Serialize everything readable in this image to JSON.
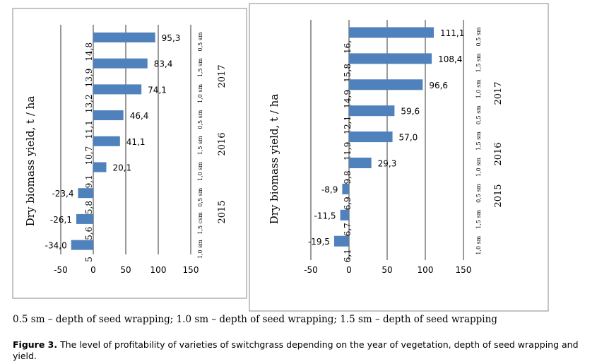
{
  "legend_text": "0.5 sm – depth of seed wrapping; 1.0 sm – depth of seed wrapping; 1.5 sm – depth of seed wrapping",
  "caption": {
    "label": "Figure 3.",
    "text": " The level of profitability of varieties of switchgrass depending on the year of vegetation, depth of seed wrapping and yield."
  },
  "colors": {
    "bar": "#4f81bd"
  },
  "chart_data": [
    {
      "type": "bar",
      "orientation": "horizontal",
      "ylabel": "Dry biomass yield, t / ha",
      "xlim": [
        -50,
        150
      ],
      "xticks": [
        "-50",
        "0",
        "50",
        "100",
        "150"
      ],
      "values": [
        95.3,
        83.4,
        74.1,
        46.4,
        41.1,
        20.1,
        -23.4,
        -26.1,
        -34.0
      ],
      "value_labels": [
        "95,3",
        "83,4",
        "74,1",
        "46,4",
        "41,1",
        "20,1",
        "-23,4",
        "-26,1",
        "-34,0"
      ],
      "yield_labels": [
        "14,8",
        "13,9",
        "13,2",
        "11,1",
        "10,7",
        "9,1",
        "5,8",
        "5,6",
        "5"
      ],
      "depth_labels": [
        "0,5 sm",
        "1,5 sm",
        "1,0 sm",
        "0,5 sm",
        "1,5 sm",
        "1,0 sm",
        "0,5 sm",
        "1,5 csm",
        "1,0 sm"
      ],
      "years": [
        "2017",
        "2016",
        "2015"
      ]
    },
    {
      "type": "bar",
      "orientation": "horizontal",
      "ylabel": "Dry biomass yield, t / ha",
      "xlim": [
        -50,
        150
      ],
      "xticks": [
        "-50",
        "0",
        "50",
        "100",
        "150"
      ],
      "values": [
        111.1,
        108.4,
        96.6,
        59.6,
        57.0,
        29.3,
        -8.9,
        -11.5,
        -19.5
      ],
      "value_labels": [
        "111,1",
        "108,4",
        "96,6",
        "59,6",
        "57,0",
        "29,3",
        "-8,9",
        "-11,5",
        "-19,5"
      ],
      "yield_labels": [
        "16,",
        "15,8",
        "14,9",
        "12,1",
        "11,9",
        "9,8",
        "6,9",
        "6,7",
        "6,1"
      ],
      "depth_labels": [
        "0,5 sm",
        "1,5 sm",
        "1,0 sm",
        "0,5 sm",
        "1,5 sm",
        "1,0 sm",
        "0,5 sm",
        "1,5 sm",
        "1,0 sm"
      ],
      "years": [
        "2017",
        "2016",
        "2015"
      ]
    }
  ]
}
